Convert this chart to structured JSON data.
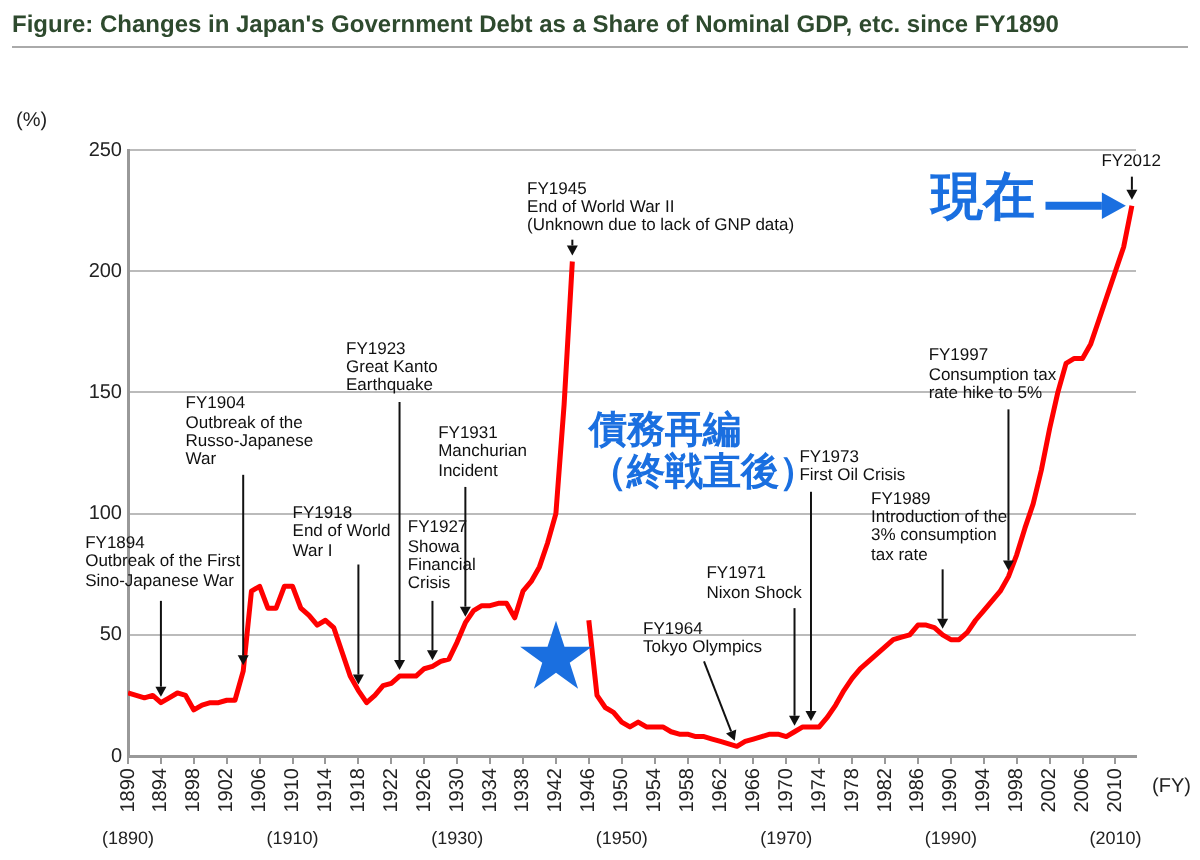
{
  "chart_data": {
    "type": "line",
    "title": "Figure: Changes in Japan's Government Debt as a Share of Nominal GDP, etc. since FY1890",
    "xlabel": "(FY)",
    "ylabel": "(%)",
    "x": [
      1890,
      1891,
      1892,
      1893,
      1894,
      1895,
      1896,
      1897,
      1898,
      1899,
      1900,
      1901,
      1902,
      1903,
      1904,
      1905,
      1906,
      1907,
      1908,
      1909,
      1910,
      1911,
      1912,
      1913,
      1914,
      1915,
      1916,
      1917,
      1918,
      1919,
      1920,
      1921,
      1922,
      1923,
      1924,
      1925,
      1926,
      1927,
      1928,
      1929,
      1930,
      1931,
      1932,
      1933,
      1934,
      1935,
      1936,
      1937,
      1938,
      1939,
      1940,
      1941,
      1942,
      1943,
      1944,
      1945,
      1946,
      1947,
      1948,
      1949,
      1950,
      1951,
      1952,
      1953,
      1954,
      1955,
      1956,
      1957,
      1958,
      1959,
      1960,
      1961,
      1962,
      1963,
      1964,
      1965,
      1966,
      1967,
      1968,
      1969,
      1970,
      1971,
      1972,
      1973,
      1974,
      1975,
      1976,
      1977,
      1978,
      1979,
      1980,
      1981,
      1982,
      1983,
      1984,
      1985,
      1986,
      1987,
      1988,
      1989,
      1990,
      1991,
      1992,
      1993,
      1994,
      1995,
      1996,
      1997,
      1998,
      1999,
      2000,
      2001,
      2002,
      2003,
      2004,
      2005,
      2006,
      2007,
      2008,
      2009,
      2010,
      2011,
      2012
    ],
    "values": [
      26,
      25,
      24,
      25,
      22,
      24,
      26,
      25,
      19,
      21,
      22,
      22,
      23,
      23,
      35,
      68,
      70,
      61,
      61,
      70,
      70,
      61,
      58,
      54,
      56,
      53,
      43,
      33,
      27,
      22,
      25,
      29,
      30,
      33,
      33,
      33,
      36,
      37,
      39,
      40,
      47,
      55,
      60,
      62,
      62,
      63,
      63,
      57,
      68,
      72,
      78,
      88,
      100,
      145,
      204,
      null,
      56,
      25,
      20,
      18,
      14,
      12,
      14,
      12,
      12,
      12,
      10,
      9,
      9,
      8,
      8,
      7,
      6,
      5,
      4,
      6,
      7,
      8,
      9,
      9,
      8,
      10,
      12,
      12,
      12,
      16,
      21,
      27,
      32,
      36,
      39,
      42,
      45,
      48,
      49,
      50,
      54,
      54,
      53,
      50,
      48,
      48,
      51,
      56,
      60,
      64,
      68,
      74,
      83,
      94,
      104,
      118,
      135,
      150,
      162,
      164,
      164,
      170,
      180,
      190,
      200,
      210,
      227
    ],
    "color": "#ff0000",
    "marker": "none",
    "line_style": "solid",
    "legend": false,
    "grid": "y",
    "xlim": [
      1890,
      2012.5
    ],
    "xticks": [
      1890,
      1894,
      1898,
      1902,
      1906,
      1910,
      1914,
      1918,
      1922,
      1926,
      1930,
      1934,
      1938,
      1942,
      1946,
      1950,
      1954,
      1958,
      1962,
      1966,
      1970,
      1974,
      1978,
      1982,
      1986,
      1990,
      1994,
      1998,
      2002,
      2006,
      2010
    ],
    "x2lim": [
      1890,
      2012.5
    ],
    "x2ticks": [
      {
        "value": 1890,
        "label": "(1890)"
      },
      {
        "value": 1910,
        "label": "(1910)"
      },
      {
        "value": 1930,
        "label": "(1930)"
      },
      {
        "value": 1950,
        "label": "(1950)"
      },
      {
        "value": 1970,
        "label": "(1970)"
      },
      {
        "value": 1990,
        "label": "(1990)"
      },
      {
        "value": 2010,
        "label": "(2010)"
      }
    ],
    "ylim": [
      0,
      250
    ],
    "yticks": [
      0,
      50,
      100,
      150,
      200,
      250
    ],
    "annotations": [
      {
        "text": "FY1894\nOutbreak of the First\nSino-Japanese War",
        "x": 1894,
        "y": 22
      },
      {
        "text": "FY1904\nOutbreak of the\nRusso-Japanese\nWar",
        "x": 1904,
        "y": 35
      },
      {
        "text": "FY1918\nEnd of World\nWar I",
        "x": 1918,
        "y": 27
      },
      {
        "text": "FY1923\nGreat Kanto\nEarthquake",
        "x": 1923,
        "y": 33
      },
      {
        "text": "FY1927\nShowa\nFinancial\nCrisis",
        "x": 1927,
        "y": 37
      },
      {
        "text": "FY1931\nManchurian\nIncident",
        "x": 1931,
        "y": 55
      },
      {
        "text": "FY1945\nEnd of World War II\n(Unknown due to lack of GNP data)",
        "x": 1944,
        "y": 204
      },
      {
        "text": "FY1964\nTokyo Olympics",
        "x": 1964,
        "y": 4
      },
      {
        "text": "FY1971\nNixon Shock",
        "x": 1971,
        "y": 10
      },
      {
        "text": "FY1973\nFirst Oil Crisis",
        "x": 1973,
        "y": 12
      },
      {
        "text": "FY1989\nIntroduction of the\n3% consumption\ntax rate",
        "x": 1989,
        "y": 50
      },
      {
        "text": "FY1997\nConsumption tax\nrate hike to 5%",
        "x": 1997,
        "y": 74
      },
      {
        "text": "FY2012",
        "x": 2012,
        "y": 227
      },
      "債務再編（終戦直後）",
      {
        "text": "現在",
        "x": 2012,
        "y": 227
      }
    ]
  }
}
